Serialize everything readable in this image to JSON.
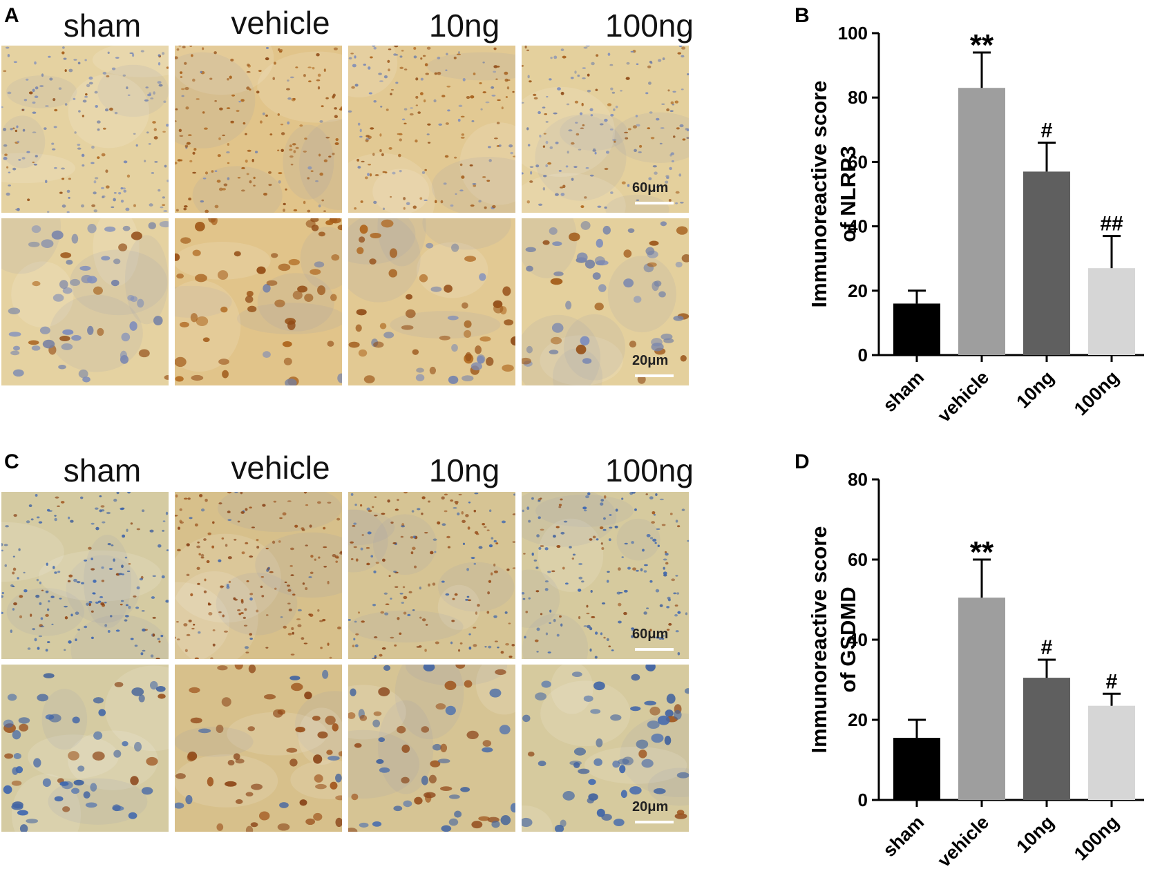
{
  "panels": {
    "a": {
      "letter": "A",
      "groups": [
        "sham",
        "vehicle",
        "10ng",
        "100ng"
      ],
      "scale_top": "60μm",
      "scale_bottom": "20μm",
      "stain_level": [
        0.25,
        0.9,
        0.65,
        0.35
      ],
      "colors": {
        "background": "#e6d7aa",
        "positive": "#b0671c",
        "negative": "#7f8fbf"
      }
    },
    "c": {
      "letter": "C",
      "groups": [
        "sham",
        "vehicle",
        "10ng",
        "100ng"
      ],
      "scale_top": "60μm",
      "scale_bottom": "20μm",
      "stain_level": [
        0.2,
        0.85,
        0.6,
        0.3
      ],
      "colors": {
        "background": "#d5cfa9",
        "positive": "#a2571e",
        "negative": "#3e68b4"
      }
    },
    "b": {
      "letter": "B"
    },
    "d": {
      "letter": "D"
    }
  },
  "chart_data": [
    {
      "type": "bar",
      "title": "",
      "ylabel_lines": [
        "Immunoreactive score",
        "of NLRP3"
      ],
      "categories": [
        "sham",
        "vehicle",
        "10ng",
        "100ng"
      ],
      "values": [
        16,
        83,
        57,
        27
      ],
      "errors": [
        4,
        11,
        9,
        10
      ],
      "annotations": [
        "",
        "**",
        "#",
        "##"
      ],
      "colors": [
        "#000000",
        "#9e9e9e",
        "#5f5f5f",
        "#d6d6d6"
      ],
      "ylim": [
        0,
        100
      ],
      "yticks": [
        0,
        20,
        40,
        60,
        80,
        100
      ]
    },
    {
      "type": "bar",
      "title": "",
      "ylabel_lines": [
        "Immunoreactive score",
        "of GSDMD"
      ],
      "categories": [
        "sham",
        "vehicle",
        "10ng",
        "100ng"
      ],
      "values": [
        15.5,
        50.5,
        30.5,
        23.5
      ],
      "errors": [
        4.5,
        9.5,
        4.5,
        3
      ],
      "annotations": [
        "",
        "**",
        "#",
        "#"
      ],
      "colors": [
        "#000000",
        "#9e9e9e",
        "#5f5f5f",
        "#d6d6d6"
      ],
      "ylim": [
        0,
        80
      ],
      "yticks": [
        0,
        20,
        40,
        60,
        80
      ]
    }
  ]
}
